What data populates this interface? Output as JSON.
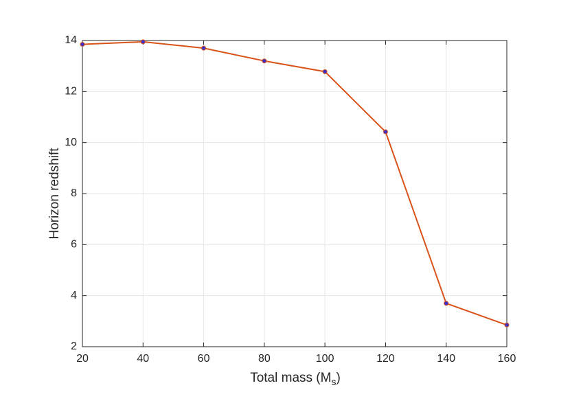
{
  "chart_data": {
    "type": "line",
    "x_label": [
      "Total mass (M",
      "s",
      ")"
    ],
    "y_label": "Horizon redshift",
    "x": [
      20,
      40,
      60,
      80,
      100,
      120,
      140,
      160
    ],
    "series": [
      {
        "color": "#d95319",
        "marker_color": "#3b2fc9",
        "values": [
          13.85,
          13.95,
          13.7,
          13.2,
          12.78,
          10.42,
          3.7,
          2.85
        ]
      }
    ],
    "xlim": [
      20,
      160
    ],
    "xticks": [
      20,
      40,
      60,
      80,
      100,
      120,
      140,
      160
    ],
    "ylim": [
      2,
      14
    ],
    "yticks": [
      2,
      4,
      6,
      8,
      10,
      12,
      14
    ],
    "grid": true
  }
}
